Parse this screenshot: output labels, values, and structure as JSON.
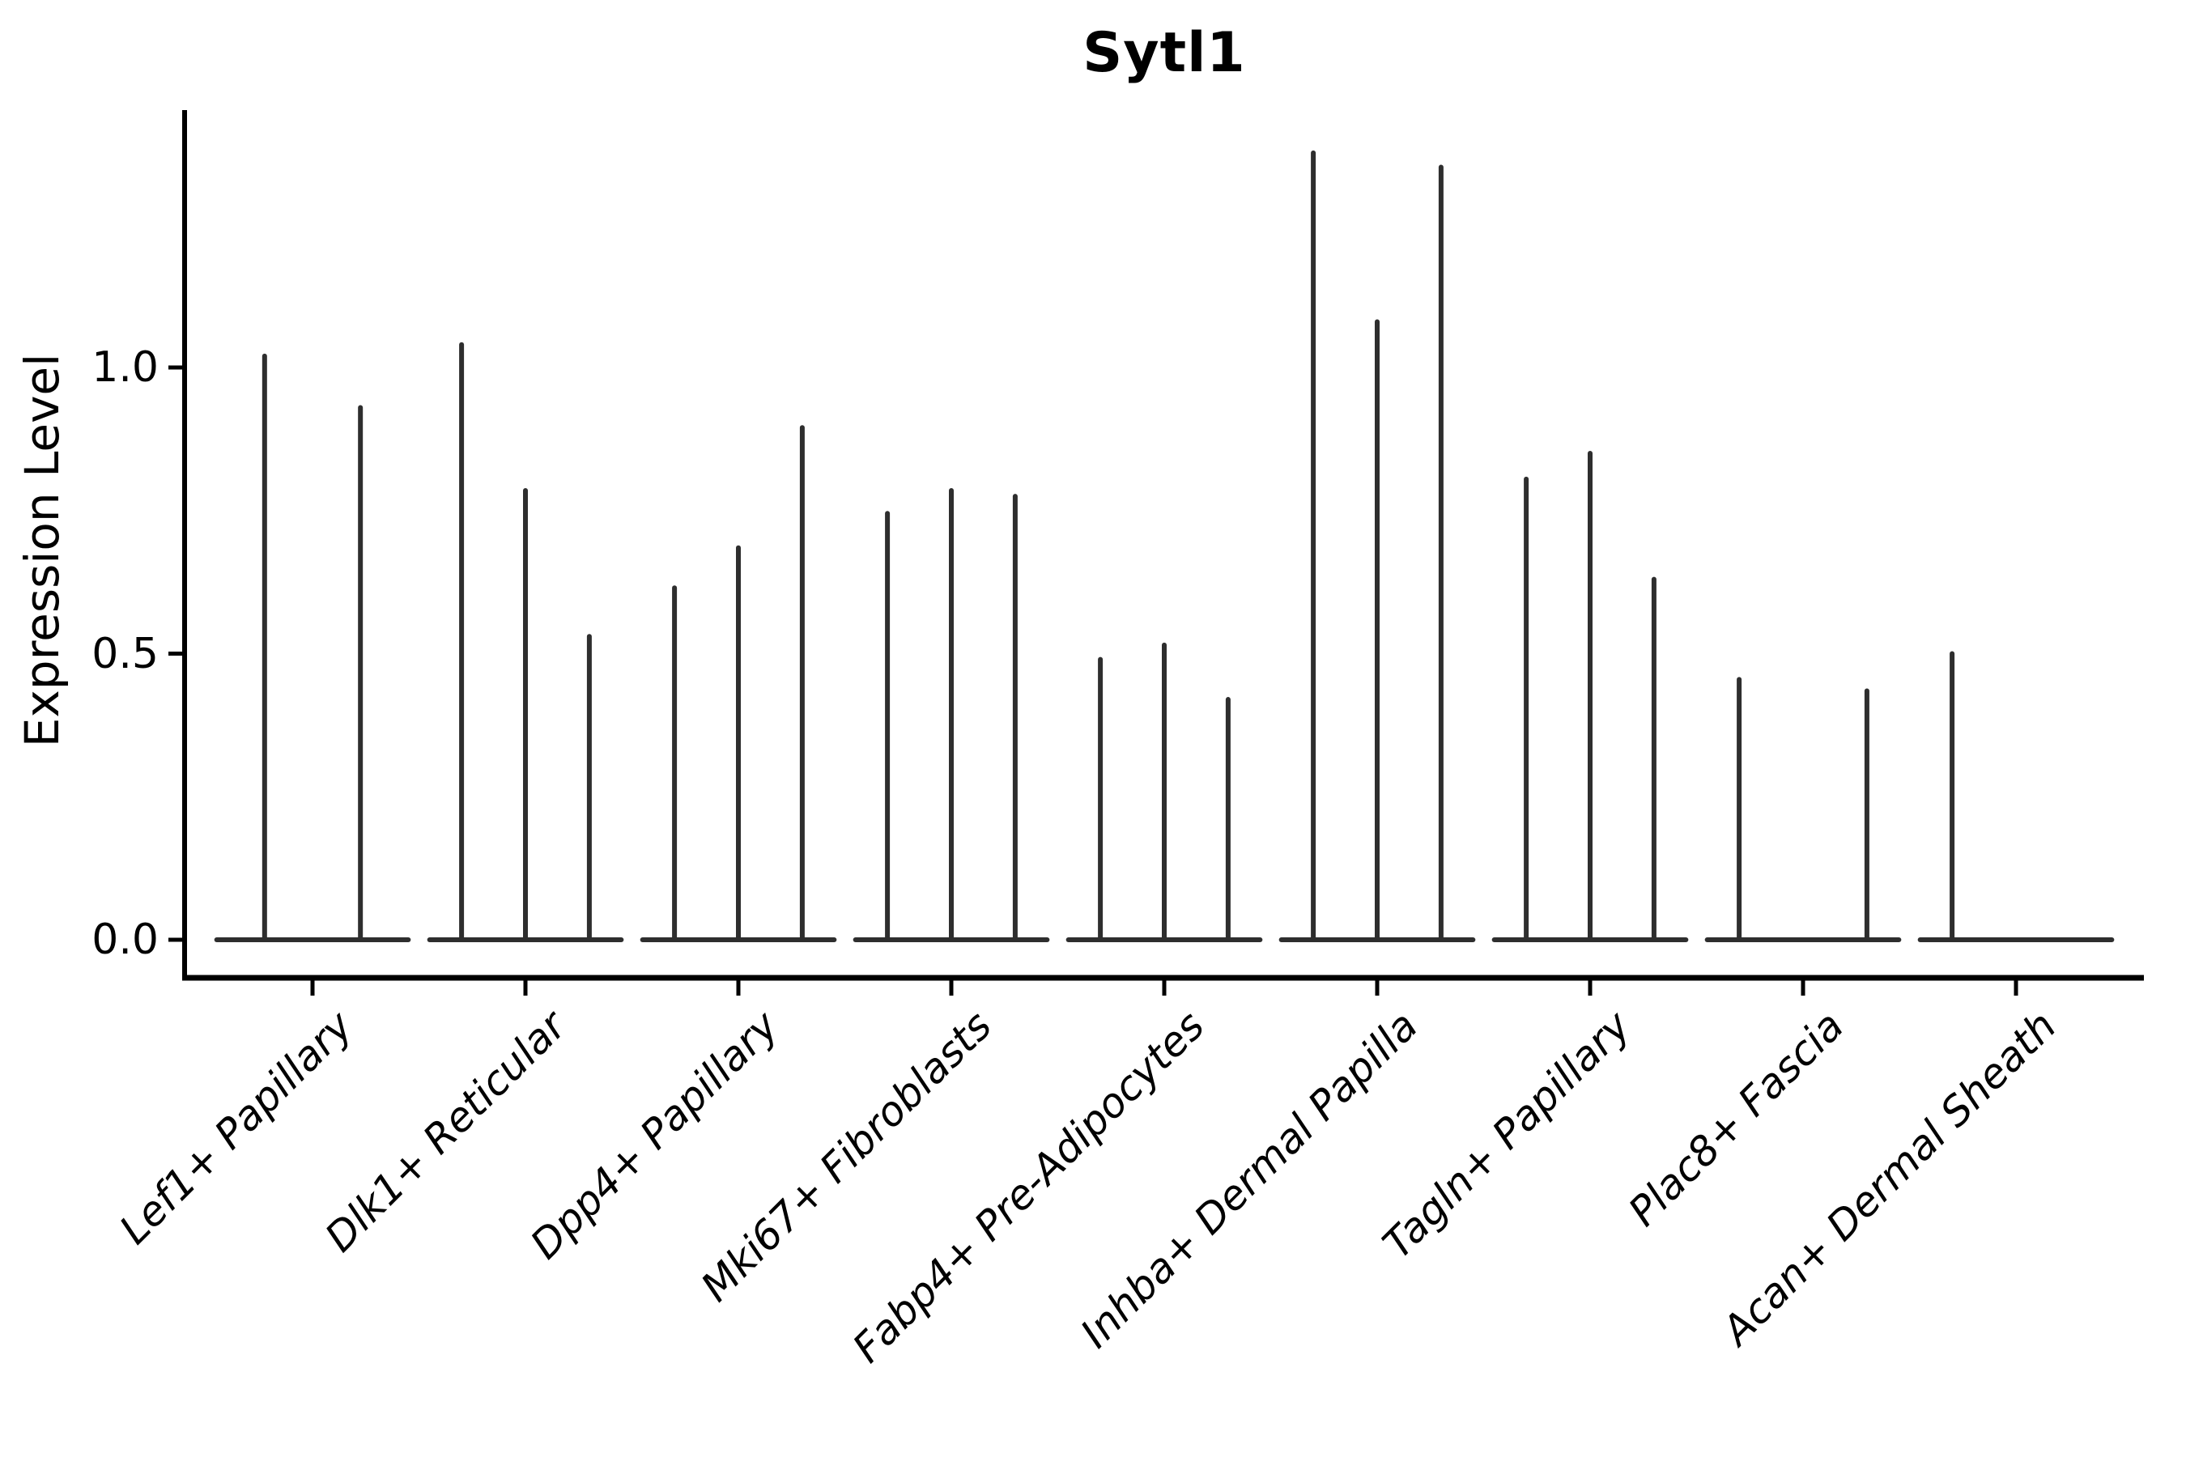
{
  "title": "Sytl1",
  "chart_data": {
    "type": "violin",
    "title": "Sytl1",
    "xlabel": "",
    "ylabel": "Expression Level",
    "yticks": [
      "0.0",
      "0.5",
      "1.0"
    ],
    "ytick_values": [
      0.0,
      0.5,
      1.0
    ],
    "ylim": [
      -0.066,
      1.45
    ],
    "grid": false,
    "legend": null,
    "violin_color": "#2e2e2e",
    "axis_color": "#000000",
    "categories": [
      "Lef1+ Papillary",
      "Dlk1+ Reticular",
      "Dpp4+ Papillary",
      "Mki67+ Fibroblasts",
      "Fabp4+ Pre-Adipocytes",
      "Inhba+ Dermal Papilla",
      "Tagln+ Papillary",
      "Plac8+ Fascia",
      "Acan+ Dermal Sheath"
    ],
    "groups": [
      {
        "label": "Lef1+ Papillary",
        "spikes": [
          1.02,
          0.93
        ]
      },
      {
        "label": "Dlk1+ Reticular",
        "spikes": [
          1.04,
          0.785,
          0.53
        ]
      },
      {
        "label": "Dpp4+ Papillary",
        "spikes": [
          0.615,
          0.685,
          0.895
        ]
      },
      {
        "label": "Mki67+ Fibroblasts",
        "spikes": [
          0.745,
          0.785,
          0.775
        ]
      },
      {
        "label": "Fabp4+ Pre-Adipocytes",
        "spikes": [
          0.49,
          0.515,
          0.42
        ]
      },
      {
        "label": "Inhba+ Dermal Papilla",
        "spikes": [
          1.375,
          1.08,
          1.35
        ]
      },
      {
        "label": "Tagln+ Papillary",
        "spikes": [
          0.805,
          0.85,
          0.63
        ]
      },
      {
        "label": "Plac8+ Fascia",
        "spikes": [
          0.455,
          null,
          0.435
        ]
      },
      {
        "label": "Acan+ Dermal Sheath",
        "spikes": [
          0.5,
          null,
          null
        ]
      }
    ]
  }
}
